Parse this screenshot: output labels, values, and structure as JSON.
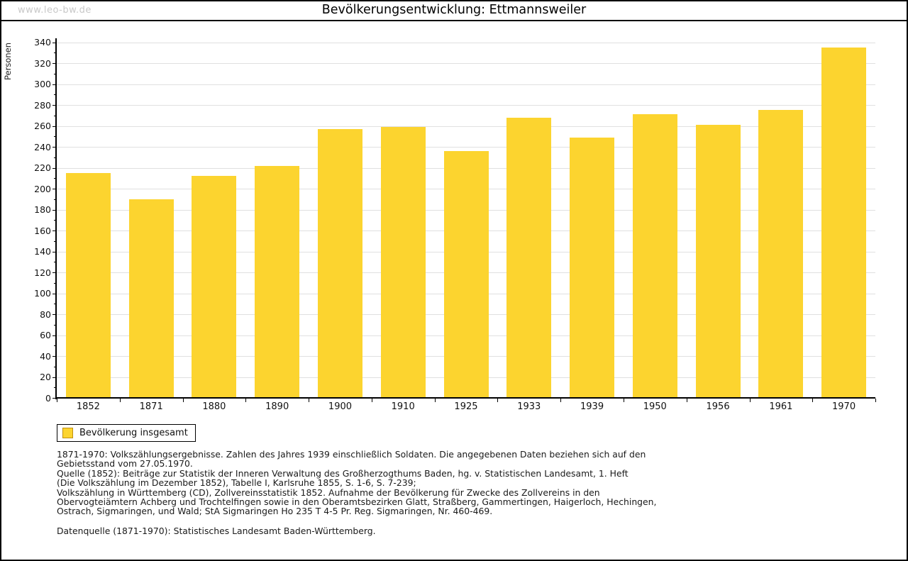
{
  "watermark": "www.leo-bw.de",
  "title": "Bevölkerungsentwicklung: Ettmannsweiler",
  "legend": {
    "label": "Bevölkerung insgesamt"
  },
  "colors": {
    "bar": "#fcd42f",
    "bar_border": "#c09010",
    "grid": "#e0e0e0",
    "axis": "#000000",
    "watermark": "#c8c8c8"
  },
  "chart_data": {
    "type": "bar",
    "title": "Bevölkerungsentwicklung: Ettmannsweiler",
    "xlabel": "",
    "ylabel": "Personen",
    "ylim": [
      0,
      340
    ],
    "ytick_step": 20,
    "ytick_minor_step": 10,
    "grid": true,
    "legend_position": "bottom-left",
    "series_name": "Bevölkerung insgesamt",
    "categories": [
      "1852",
      "1871",
      "1880",
      "1890",
      "1900",
      "1910",
      "1925",
      "1933",
      "1939",
      "1950",
      "1956",
      "1961",
      "1970"
    ],
    "values": [
      215,
      190,
      212,
      222,
      257,
      259,
      236,
      268,
      249,
      271,
      261,
      275,
      335
    ]
  },
  "footnotes": {
    "lines": [
      "1871-1970: Volkszählungsergebnisse. Zahlen des Jahres 1939 einschließlich Soldaten. Die angegebenen Daten beziehen sich auf den",
      "Gebietsstand vom 27.05.1970.",
      "Quelle (1852): Beiträge zur Statistik der Inneren Verwaltung des Großherzogthums Baden, hg. v. Statistischen Landesamt, 1. Heft",
      "(Die Volkszählung im Dezember 1852), Tabelle I, Karlsruhe 1855, S. 1-6, S. 7-239;",
      "Volkszählung in Württemberg (CD), Zollvereinsstatistik 1852. Aufnahme der Bevölkerung für Zwecke des Zollvereins in den",
      "Obervogteiämtern Achberg und Trochtelfingen sowie in den Oberamtsbezirken Glatt, Straßberg, Gammertingen, Haigerloch, Hechingen,",
      "Ostrach, Sigmaringen, und Wald; StA Sigmaringen Ho 235 T 4-5 Pr. Reg. Sigmaringen, Nr. 460-469.",
      "Datenquelle (1871-1970): Statistisches Landesamt Baden-Württemberg."
    ]
  }
}
